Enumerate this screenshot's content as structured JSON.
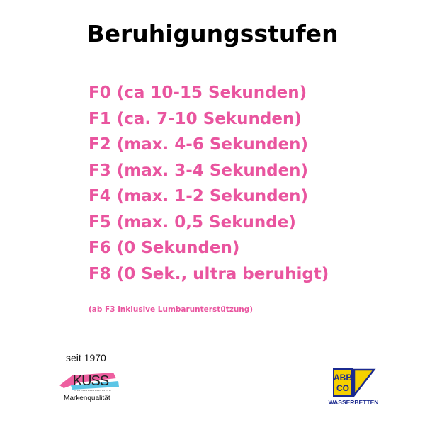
{
  "title": "Beruhigungsstufen",
  "accent_color": "#e9559f",
  "levels": [
    "F0 (ca 10-15 Sekunden)",
    "F1 (ca. 7-10 Sekunden)",
    "F2 (max. 4-6 Sekunden)",
    "F3 (max. 3-4 Sekunden)",
    "F4 (max. 1-2 Sekunden)",
    "F5 (max. 0,5 Sekunde)",
    "F6 (0 Sekunden)",
    "F8 (0 Sek., ultra beruhigt)"
  ],
  "note": "(ab F3 inklusive Lumbarunterstützung)",
  "kuss_logo": {
    "since": "seit 1970",
    "brand": "KUSS",
    "tagline": "Markenqualität"
  },
  "abbco_logo": {
    "brand_top": "ABB",
    "brand_bottom": "CO",
    "tagline": "WASSERBETTEN"
  }
}
